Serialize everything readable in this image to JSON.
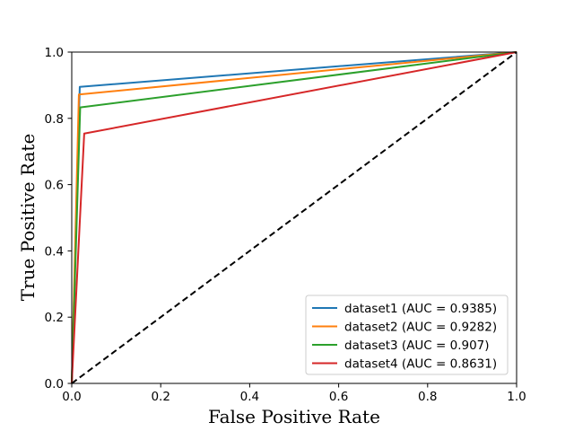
{
  "chart_data": {
    "type": "line",
    "title": "",
    "xlabel": "False Positive Rate",
    "ylabel": "True Positive Rate",
    "xlim": [
      0.0,
      1.0
    ],
    "ylim": [
      0.0,
      1.0
    ],
    "xticks": [
      "0.0",
      "0.2",
      "0.4",
      "0.6",
      "0.8",
      "1.0"
    ],
    "yticks": [
      "0.0",
      "0.2",
      "0.4",
      "0.6",
      "0.8",
      "1.0"
    ],
    "grid": false,
    "legend_position": "lower-right",
    "series": [
      {
        "name": "dataset1 (AUC = 0.9385)",
        "color": "#1f77b4",
        "x": [
          0.0,
          0.018,
          1.0
        ],
        "y": [
          0.0,
          0.895,
          1.0
        ]
      },
      {
        "name": "dataset2 (AUC = 0.9282)",
        "color": "#ff7f0e",
        "x": [
          0.0,
          0.016,
          1.0
        ],
        "y": [
          0.0,
          0.872,
          1.0
        ]
      },
      {
        "name": "dataset3 (AUC = 0.907)",
        "color": "#2ca02c",
        "x": [
          0.0,
          0.019,
          1.0
        ],
        "y": [
          0.0,
          0.833,
          1.0
        ]
      },
      {
        "name": "dataset4 (AUC = 0.8631)",
        "color": "#d62728",
        "x": [
          0.0,
          0.028,
          1.0
        ],
        "y": [
          0.0,
          0.754,
          1.0
        ]
      }
    ],
    "reference_line": {
      "style": "dashed",
      "color": "#000000",
      "x": [
        0.0,
        1.0
      ],
      "y": [
        0.0,
        1.0
      ]
    }
  }
}
